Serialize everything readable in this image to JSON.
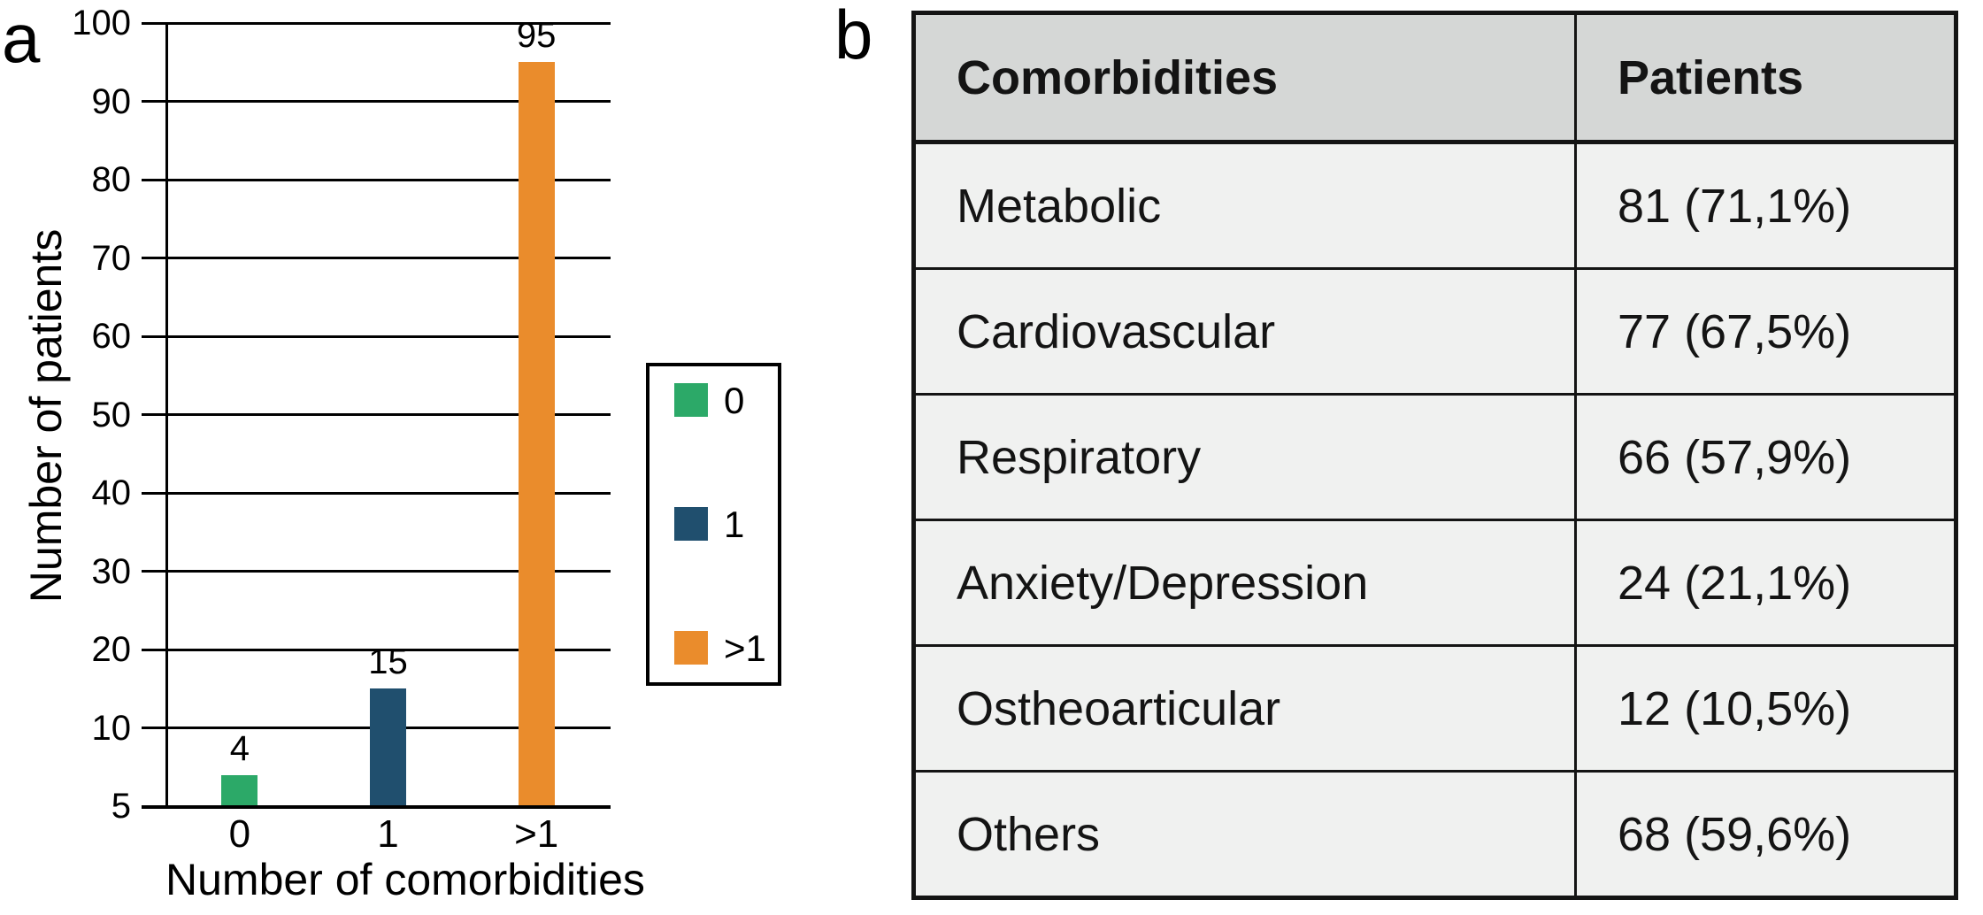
{
  "panels": {
    "a_label": "a",
    "b_label": "b"
  },
  "chart_data": {
    "type": "bar",
    "title": "",
    "xlabel": "Number of comorbidities",
    "ylabel": "Number of patients",
    "categories": [
      "0",
      "1",
      ">1"
    ],
    "values": [
      4,
      15,
      95
    ],
    "bar_labels": [
      "4",
      "15",
      "95"
    ],
    "bar_colors": [
      "#2CA968",
      "#204F6E",
      "#EA8C2C"
    ],
    "ylim": [
      0,
      100
    ],
    "ytick_labels": [
      "100",
      "90",
      "80",
      "70",
      "60",
      "50",
      "40",
      "30",
      "20",
      "10",
      "5"
    ],
    "grid": true,
    "legend": {
      "position": "right",
      "entries": [
        {
          "label": "0",
          "color": "#2CA968"
        },
        {
          "label": "1",
          "color": "#204F6E"
        },
        {
          "label": ">1",
          "color": "#EA8C2C"
        }
      ]
    }
  },
  "table": {
    "headers": [
      "Comorbidities",
      "Patients"
    ],
    "rows": [
      [
        "Metabolic",
        "81 (71,1%)"
      ],
      [
        "Cardiovascular",
        "77 (67,5%)"
      ],
      [
        "Respiratory",
        "66 (57,9%)"
      ],
      [
        "Anxiety/Depression",
        "24 (21,1%)"
      ],
      [
        "Ostheoarticular",
        "12 (10,5%)"
      ],
      [
        "Others",
        "68 (59,6%)"
      ]
    ],
    "header_bg": "#D5D7D6",
    "row_bg": "#F0F1F0",
    "border_color": "#141414"
  }
}
